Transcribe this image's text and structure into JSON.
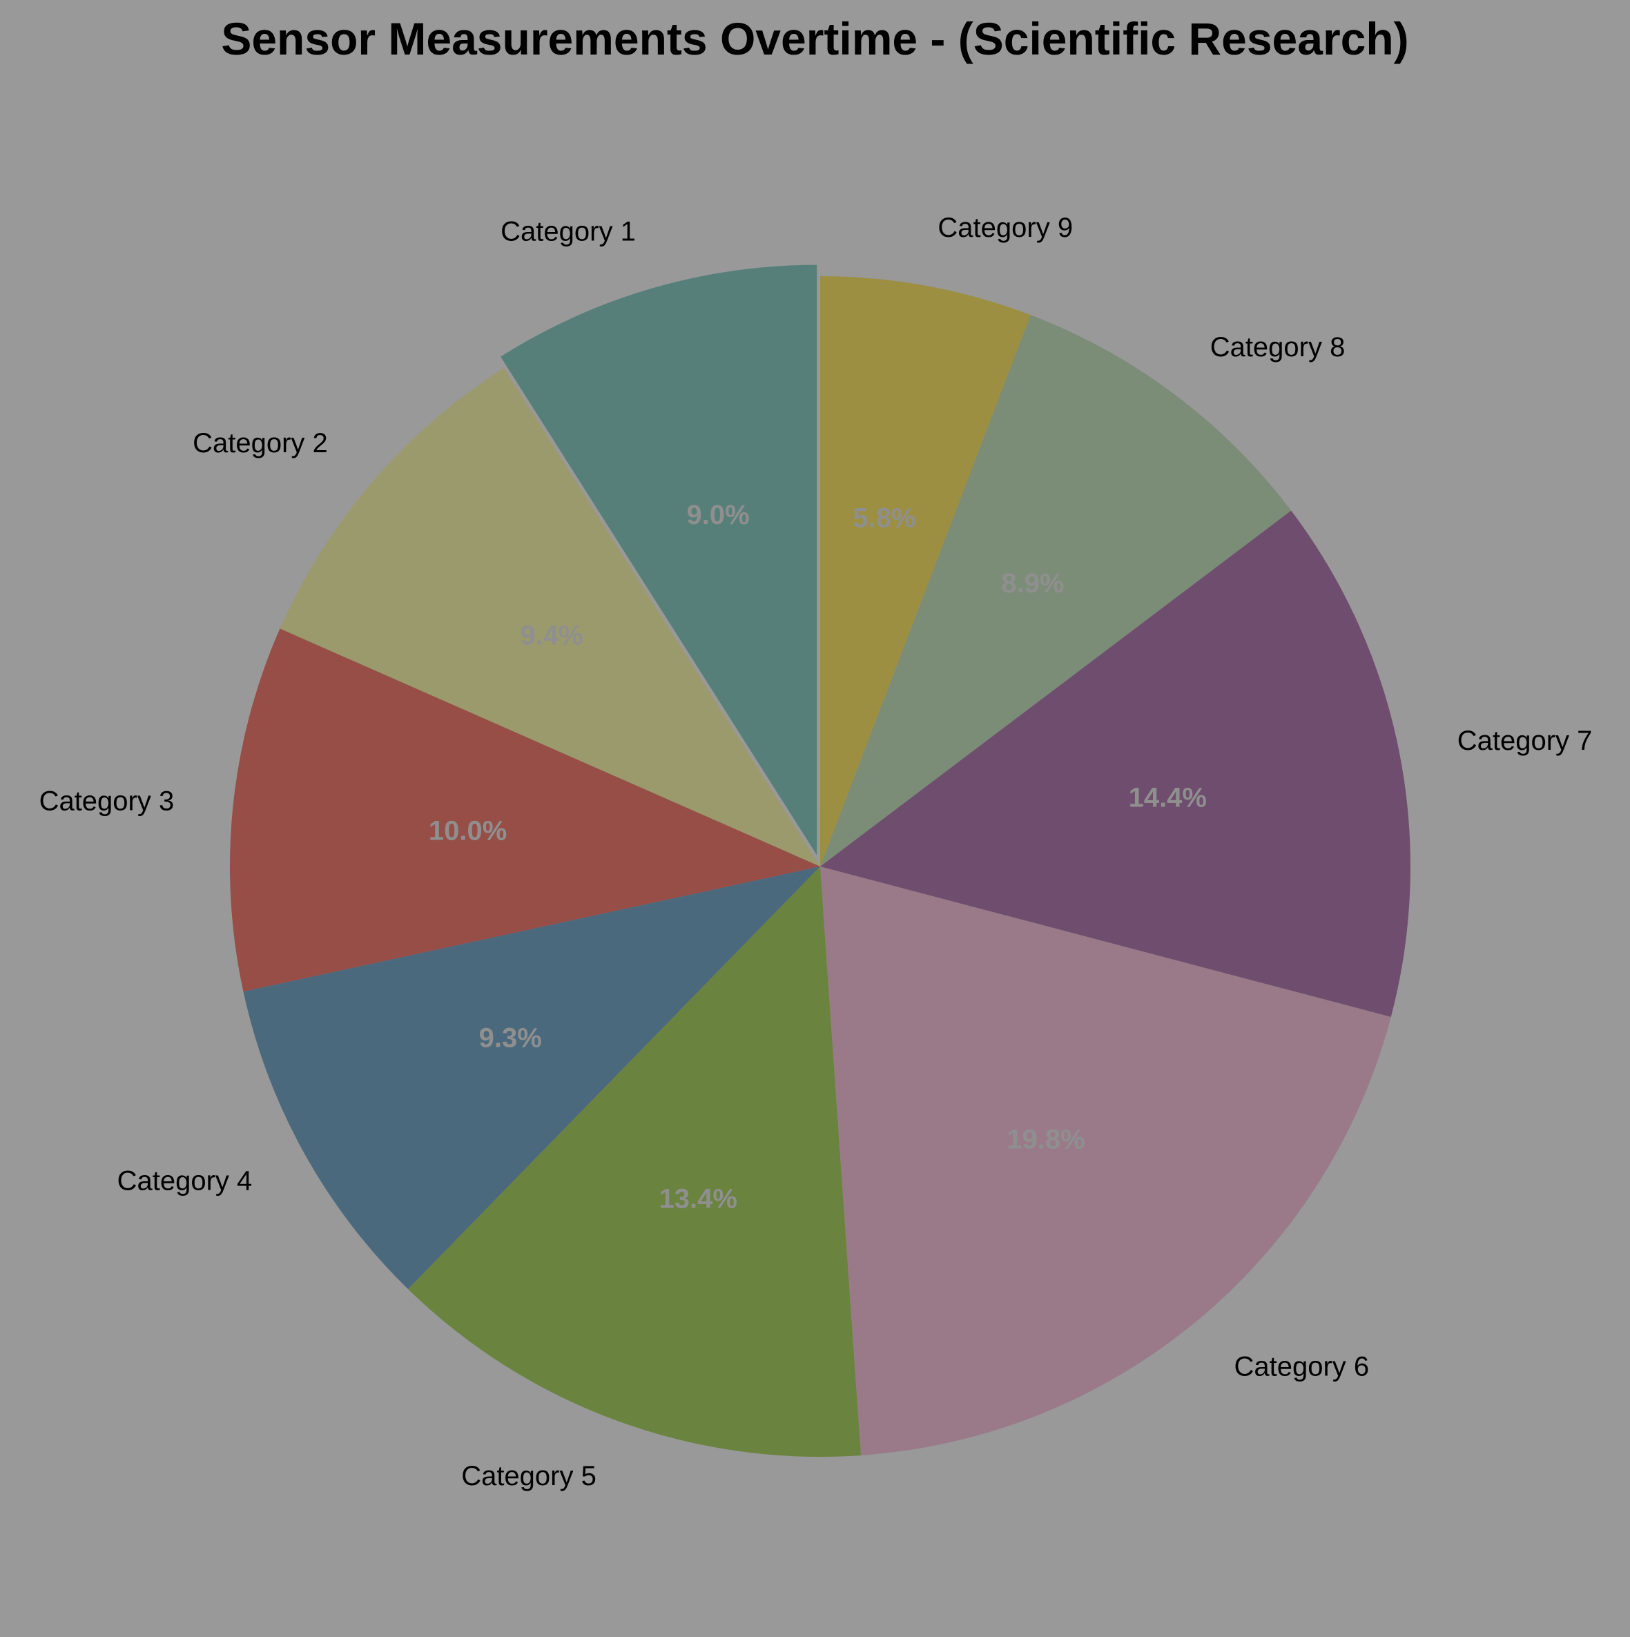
{
  "chart_data": {
    "type": "pie",
    "title": "Sensor Measurements Overtime - (Scientific Research)",
    "categories": [
      "Category 1",
      "Category 2",
      "Category 3",
      "Category 4",
      "Category 5",
      "Category 6",
      "Category 7",
      "Category 8",
      "Category 9"
    ],
    "values": [
      9.0,
      9.4,
      10.0,
      9.3,
      13.4,
      19.8,
      14.4,
      8.9,
      5.8
    ],
    "percent_labels": [
      "9.0%",
      "9.4%",
      "10.0%",
      "9.3%",
      "13.4%",
      "19.8%",
      "14.4%",
      "8.9%",
      "5.8%"
    ],
    "colors": [
      "#567f79",
      "#9b9a6c",
      "#964e46",
      "#4b697d",
      "#6a833e",
      "#9a7a88",
      "#6f4d6e",
      "#7b8c77",
      "#9c8f42"
    ],
    "exploded": [
      "Category 1"
    ],
    "start_angle_deg": 90,
    "direction": "counterclockwise",
    "background_color": "#999999"
  }
}
